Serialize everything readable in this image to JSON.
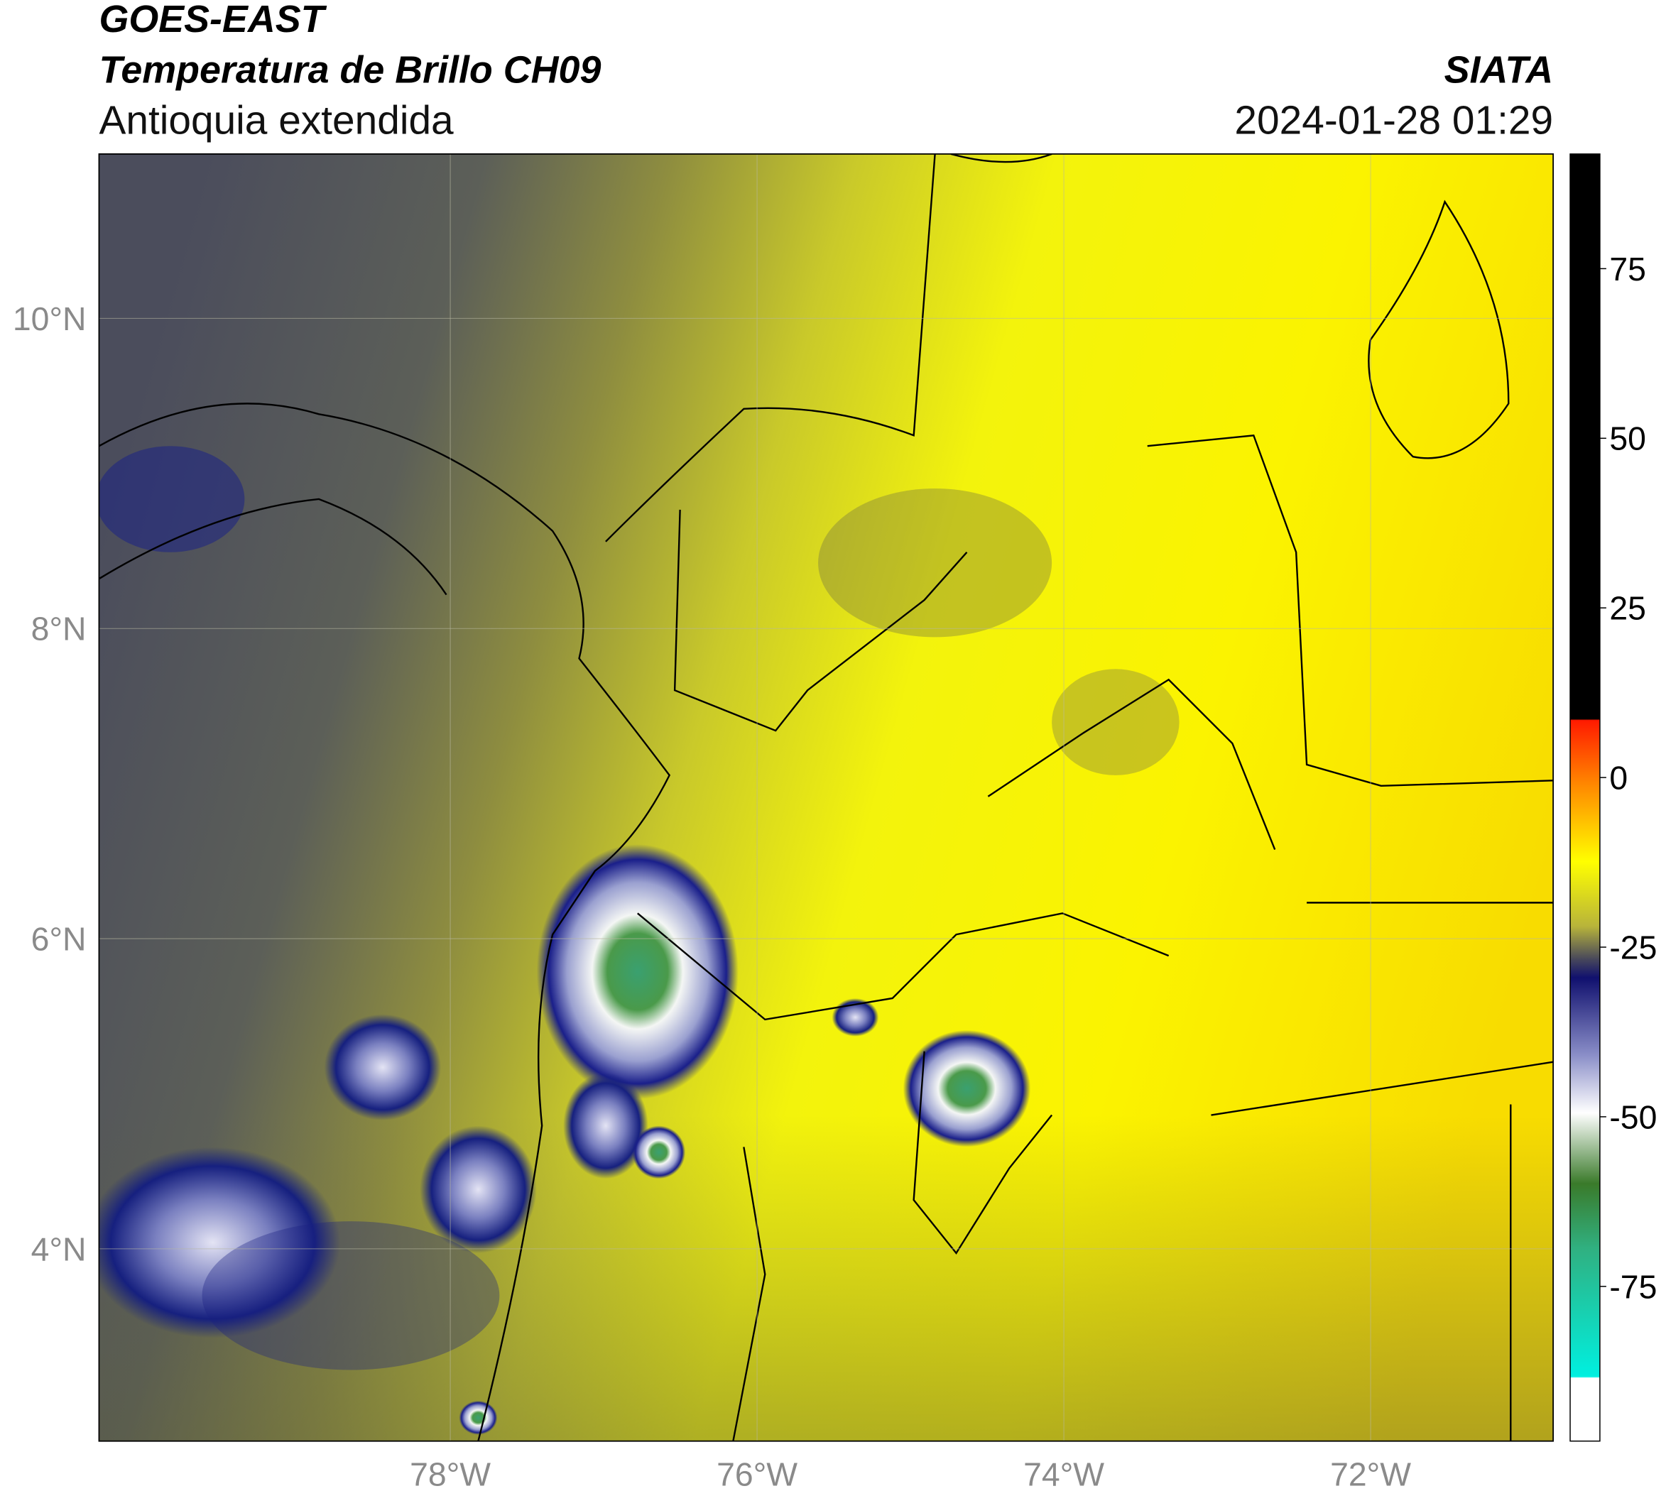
{
  "header": {
    "title": "GOES-EAST",
    "subtitle": "Temperatura de Brillo CH09",
    "region": "Antioquia extendida",
    "source": "SIATA",
    "datetime": "2024-01-28 01:29"
  },
  "map": {
    "xlim": [
      -80.29,
      -70.81
    ],
    "ylim": [
      2.76,
      11.06
    ],
    "xticks": [
      {
        "value": -78,
        "label": "78°W"
      },
      {
        "value": -76,
        "label": "76°W"
      },
      {
        "value": -74,
        "label": "74°W"
      },
      {
        "value": -72,
        "label": "72°W"
      }
    ],
    "yticks": [
      {
        "value": 4,
        "label": "4°N"
      },
      {
        "value": 6,
        "label": "6°N"
      },
      {
        "value": 8,
        "label": "8°N"
      },
      {
        "value": 10,
        "label": "10°N"
      }
    ]
  },
  "colorbar": {
    "lim": [
      -97.8,
      91.9
    ],
    "ticks": [
      75,
      50,
      25,
      0,
      -25,
      -50,
      -75
    ]
  }
}
